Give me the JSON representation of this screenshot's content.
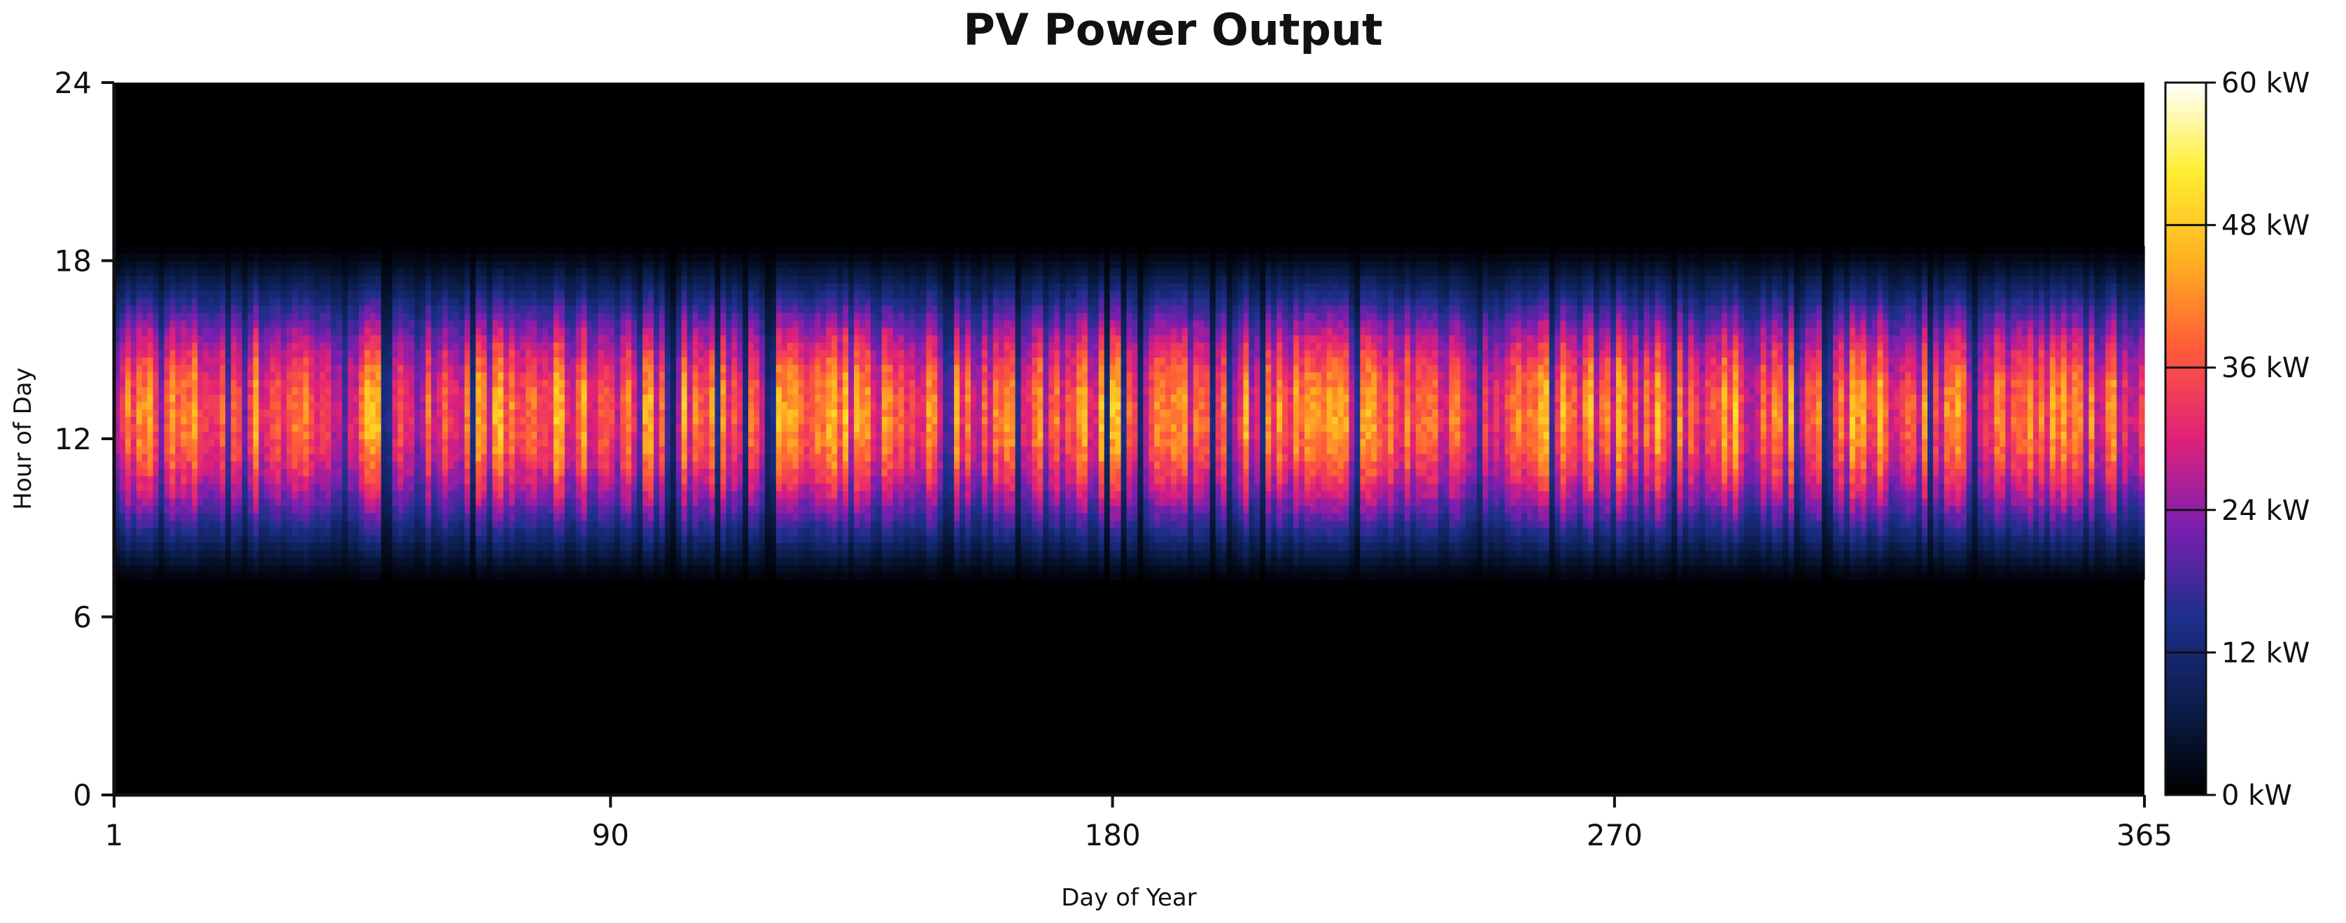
{
  "chart_data": {
    "type": "heatmap",
    "title": "PV Power Output",
    "xlabel": "Day of Year",
    "ylabel": "Hour of Day",
    "x_range": [
      1,
      365
    ],
    "y_range": [
      0,
      24
    ],
    "x_ticks": [
      "1",
      "90",
      "180",
      "270",
      "365"
    ],
    "y_ticks": [
      "0",
      "6",
      "12",
      "18",
      "24"
    ],
    "colorbar": {
      "min": 0,
      "max": 60,
      "unit": "kW",
      "ticks": [
        "0 kW",
        "12 kW",
        "24 kW",
        "36 kW",
        "48 kW",
        "60 kW"
      ],
      "colors": [
        "#000000",
        "#0b1d4a",
        "#1e2f8c",
        "#7a1fb0",
        "#e0207a",
        "#ff5a3a",
        "#ffb020",
        "#ffee30",
        "#ffffff"
      ]
    },
    "profile": {
      "sunrise_hour": 7.2,
      "sunset_hour": 18.8,
      "typical_peak_kw": 52,
      "peak_hour": 12.8
    }
  }
}
